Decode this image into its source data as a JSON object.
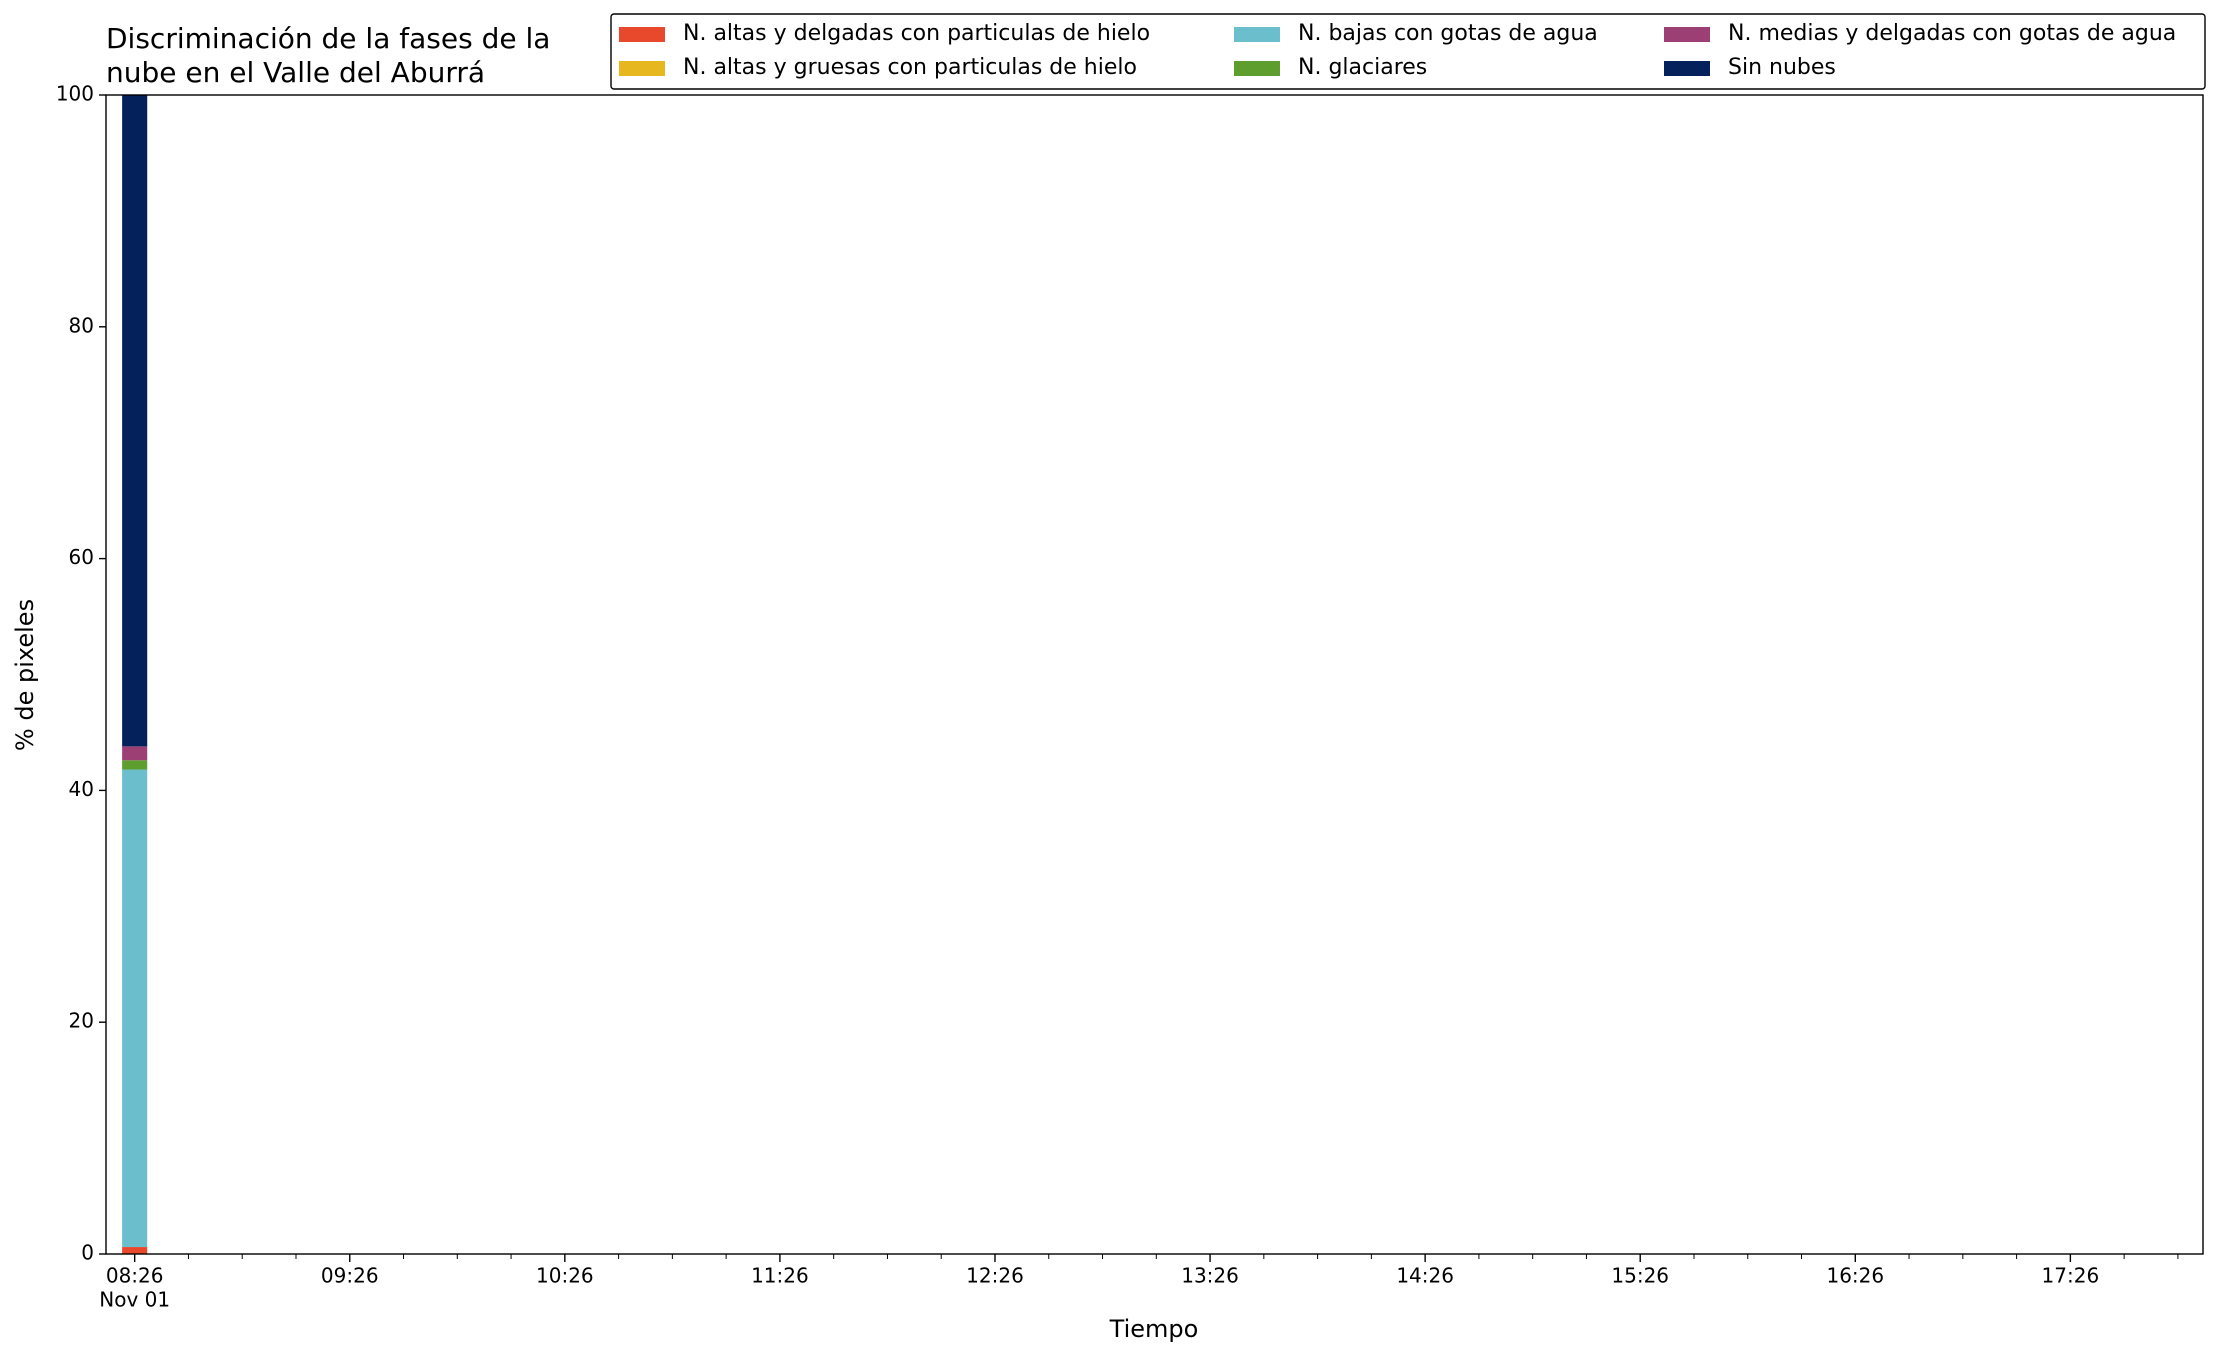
{
  "chart_data": {
    "type": "stacked-bar",
    "title": [
      "Discriminación de la fases de la",
      "nube en el Valle del Aburrá"
    ],
    "x_label": "Tiempo",
    "y_label": "% de pixeles",
    "x": [
      "08:26"
    ],
    "x_date_label": "Nov 01",
    "series": [
      {
        "name": "N. altas y delgadas con particulas de hielo",
        "color": "#e8482b",
        "values": [
          0.6
        ]
      },
      {
        "name": "N. altas y gruesas con particulas de hielo",
        "color": "#e6b71e",
        "values": [
          0
        ]
      },
      {
        "name": "N. bajas con gotas de agua",
        "color": "#6bbfcc",
        "values": [
          41.2
        ]
      },
      {
        "name": "N. glaciares",
        "color": "#5e9e2e",
        "values": [
          0.8
        ]
      },
      {
        "name": "N. medias y delgadas con gotas de agua",
        "color": "#9b3f75",
        "values": [
          1.2
        ]
      },
      {
        "name": "Sin nubes",
        "color": "#04215c",
        "values": [
          56.2
        ]
      }
    ],
    "xlim": [
      "08:18",
      "18:03"
    ],
    "xticks": [
      "08:26",
      "09:26",
      "10:26",
      "11:26",
      "12:26",
      "13:26",
      "14:26",
      "15:26",
      "16:26",
      "17:26"
    ],
    "xminorticks": [
      "08:41",
      "08:56",
      "09:11",
      "09:41",
      "09:56",
      "10:11",
      "10:41",
      "10:56",
      "11:11",
      "11:41",
      "11:56",
      "12:11",
      "12:41",
      "12:56",
      "13:11",
      "13:41",
      "13:56",
      "14:11",
      "14:41",
      "14:56",
      "15:11",
      "15:41",
      "15:56",
      "16:11",
      "16:41",
      "16:56",
      "17:11",
      "17:41",
      "17:56"
    ],
    "ylim": [
      0,
      100
    ],
    "yticks": [
      0,
      20,
      40,
      60,
      80,
      100
    ],
    "legend": "top-right",
    "legend_columns": 3
  }
}
